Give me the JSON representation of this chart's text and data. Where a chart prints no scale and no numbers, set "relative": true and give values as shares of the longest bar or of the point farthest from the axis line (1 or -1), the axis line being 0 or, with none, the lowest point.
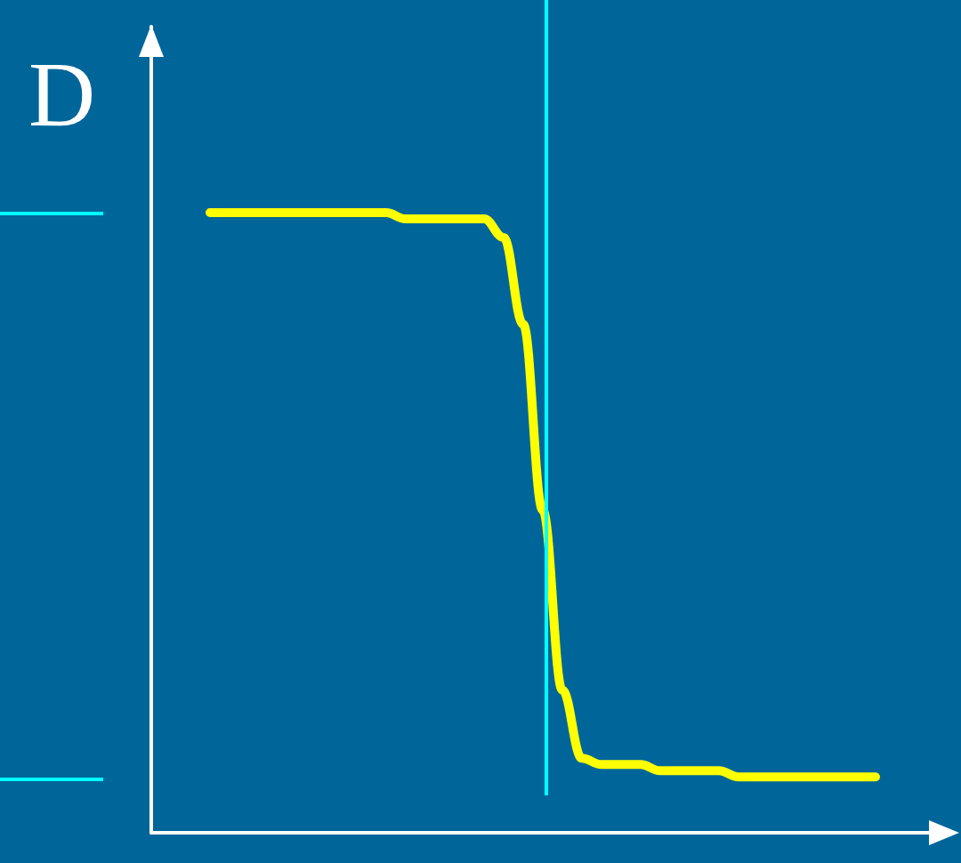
{
  "chart_data": {
    "type": "line",
    "ylabel": "D",
    "relative": true,
    "categories": [
      null,
      null,
      null,
      null,
      null,
      null,
      null,
      null,
      null,
      null,
      null,
      null,
      null,
      null,
      null,
      null,
      null,
      null,
      null,
      null,
      null,
      null,
      null,
      null,
      null,
      null,
      null,
      null,
      null,
      null,
      null,
      null,
      null,
      null,
      null,
      null,
      null,
      null,
      null,
      null,
      null
    ],
    "series": [
      {
        "color": "#ffff00",
        "values": [
          null,
          null,
          null,
          1.0,
          1.0,
          1.0,
          1.0,
          1.0,
          1.0,
          1.0,
          1.0,
          1.0,
          1.0,
          0.99,
          0.99,
          0.99,
          0.99,
          0.99,
          0.96,
          0.82,
          0.52,
          0.23,
          0.12,
          0.11,
          0.11,
          0.11,
          0.1,
          0.1,
          0.1,
          0.1,
          0.09,
          0.09,
          0.09,
          0.09,
          0.09,
          0.09,
          0.09,
          0.09,
          null,
          null,
          null
        ]
      }
    ],
    "marker": "none",
    "line_style": "solid",
    "grid": false
  }
}
